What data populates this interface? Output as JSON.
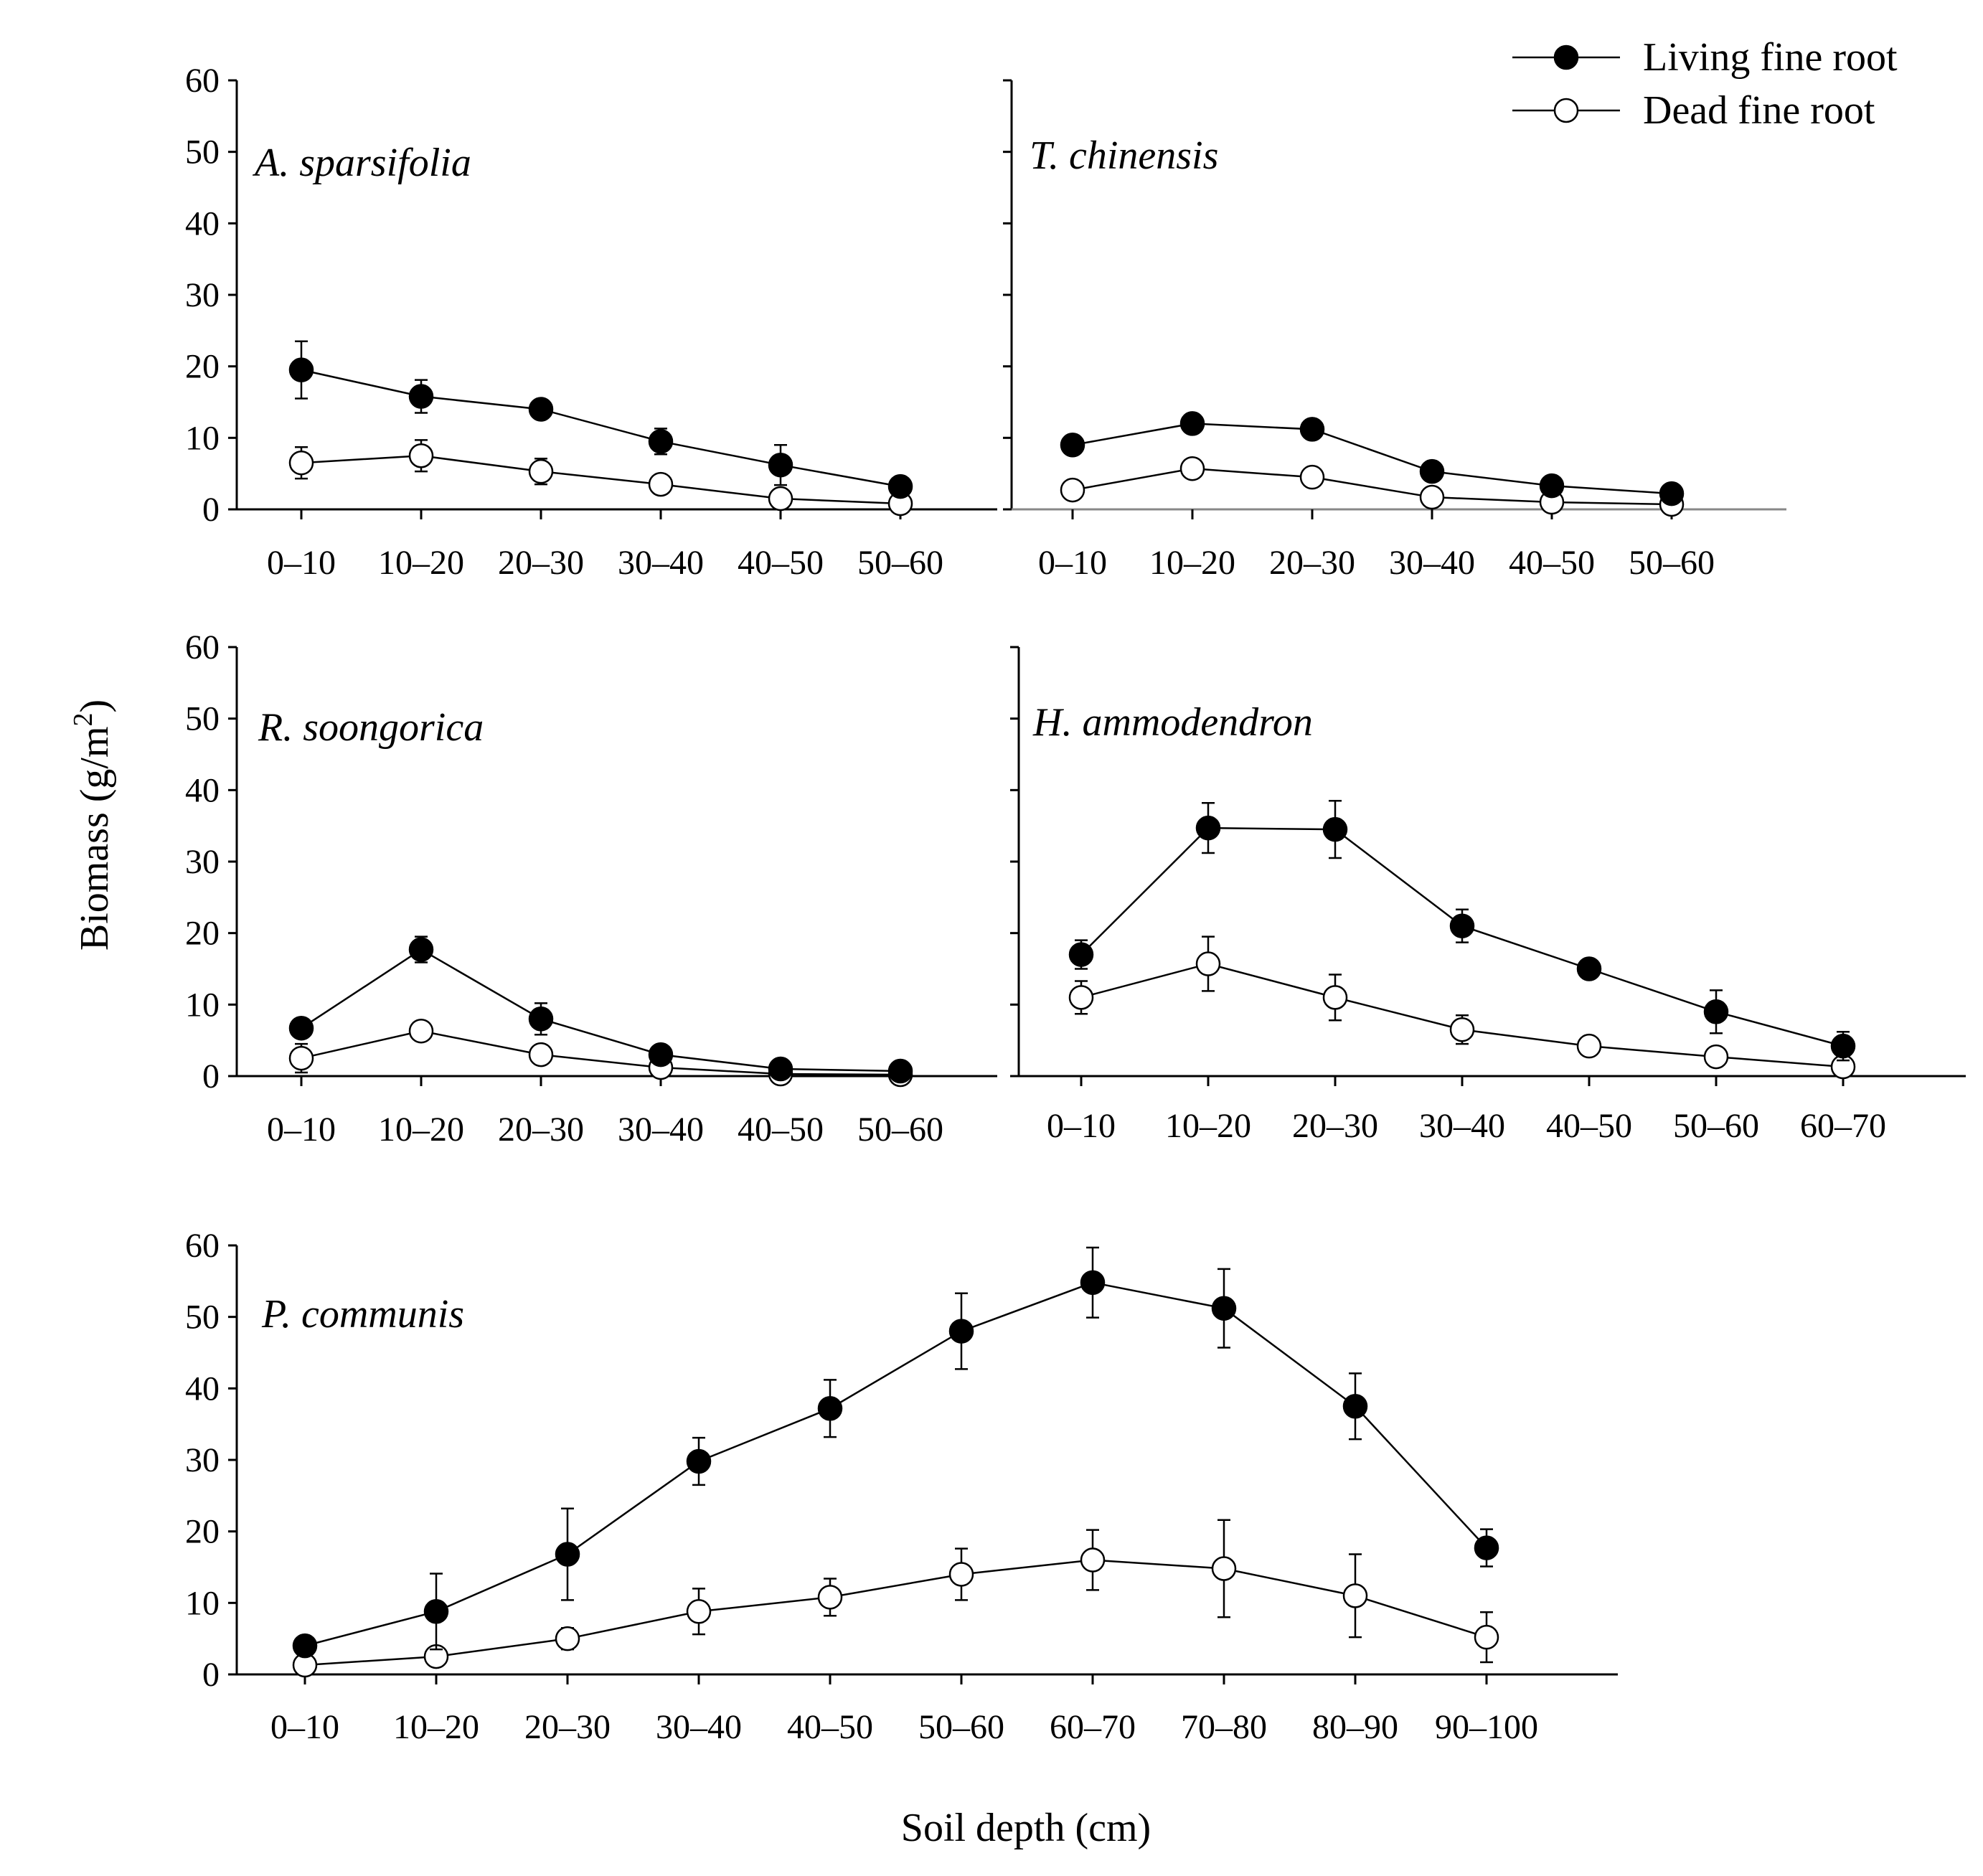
{
  "figure": {
    "ylabel": "Biomass (g/m",
    "ylabel_sup": "2",
    "ylabel_close": ")",
    "xlabel": "Soil depth (cm)"
  },
  "legend": {
    "entries": [
      {
        "label": "Living fine root",
        "marker": "filled-circle"
      },
      {
        "label": "Dead fine root",
        "marker": "open-circle"
      }
    ],
    "placement": "top-right"
  },
  "colors": {
    "line": "#000000",
    "filled": "#000000",
    "open": "#ffffff"
  },
  "chart_data": [
    {
      "type": "line",
      "title": "A. sparsifolia",
      "categories": [
        "0–10",
        "10–20",
        "20–30",
        "30–40",
        "40–50",
        "50–60"
      ],
      "yticks": [
        "0",
        "10",
        "20",
        "30",
        "40",
        "50",
        "60"
      ],
      "ylim": [
        0,
        60
      ],
      "series": [
        {
          "name": "Living fine root",
          "values": [
            19.5,
            15.8,
            14.0,
            9.5,
            6.2,
            3.2
          ],
          "errors": [
            4.0,
            2.3,
            0.8,
            1.8,
            2.8,
            0.6
          ]
        },
        {
          "name": "Dead fine root",
          "values": [
            6.5,
            7.5,
            5.3,
            3.5,
            1.5,
            0.8
          ],
          "errors": [
            2.2,
            2.2,
            1.8,
            0.7,
            0.5,
            0.3
          ]
        }
      ]
    },
    {
      "type": "line",
      "title": "T. chinensis",
      "categories": [
        "0–10",
        "10–20",
        "20–30",
        "30–40",
        "40–50",
        "50–60"
      ],
      "yticks": [],
      "ylim": [
        0,
        60
      ],
      "series": [
        {
          "name": "Living fine root",
          "values": [
            9.0,
            12.0,
            11.2,
            5.3,
            3.3,
            2.2
          ],
          "errors": [
            0.7,
            1.0,
            0.8,
            0.6,
            0.4,
            0.3
          ]
        },
        {
          "name": "Dead fine root",
          "values": [
            2.7,
            5.7,
            4.5,
            1.7,
            1.0,
            0.7
          ],
          "errors": [
            0.6,
            0.8,
            1.0,
            0.4,
            0.3,
            0.2
          ]
        }
      ]
    },
    {
      "type": "line",
      "title": "R. soongorica",
      "categories": [
        "0–10",
        "10–20",
        "20–30",
        "30–40",
        "40–50",
        "50–60"
      ],
      "yticks": [
        "0",
        "10",
        "20",
        "30",
        "40",
        "50",
        "60"
      ],
      "ylim": [
        0,
        60
      ],
      "series": [
        {
          "name": "Living fine root",
          "values": [
            6.7,
            17.7,
            8.0,
            3.0,
            1.0,
            0.7
          ],
          "errors": [
            0.8,
            1.8,
            2.2,
            0.6,
            0.3,
            0.2
          ]
        },
        {
          "name": "Dead fine root",
          "values": [
            2.5,
            6.3,
            3.0,
            1.2,
            0.3,
            0.2
          ],
          "errors": [
            2.0,
            1.0,
            1.3,
            0.5,
            0.2,
            0.1
          ]
        }
      ]
    },
    {
      "type": "line",
      "title": "H. ammodendron",
      "categories": [
        "0–10",
        "10–20",
        "20–30",
        "30–40",
        "40–50",
        "50–60",
        "60–70"
      ],
      "yticks": [],
      "ylim": [
        0,
        60
      ],
      "series": [
        {
          "name": "Living fine root",
          "values": [
            17.0,
            34.7,
            34.5,
            21.0,
            15.0,
            9.0,
            4.2
          ],
          "errors": [
            2.0,
            3.5,
            4.0,
            2.3,
            0.8,
            3.0,
            2.0
          ]
        },
        {
          "name": "Dead fine root",
          "values": [
            11.0,
            15.7,
            11.0,
            6.5,
            4.2,
            2.7,
            1.3
          ],
          "errors": [
            2.3,
            3.8,
            3.2,
            2.0,
            0.7,
            0.5,
            0.4
          ]
        }
      ]
    },
    {
      "type": "line",
      "title": "P. communis",
      "categories": [
        "0–10",
        "10–20",
        "20–30",
        "30–40",
        "40–50",
        "50–60",
        "60–70",
        "70–80",
        "80–90",
        "90–100"
      ],
      "yticks": [
        "0",
        "10",
        "20",
        "30",
        "40",
        "50",
        "60"
      ],
      "ylim": [
        0,
        60
      ],
      "series": [
        {
          "name": "Living fine root",
          "values": [
            4.0,
            8.8,
            16.8,
            29.8,
            37.2,
            48.0,
            54.8,
            51.2,
            37.5,
            17.7
          ],
          "errors": [
            0.5,
            5.3,
            6.4,
            3.3,
            4.0,
            5.3,
            4.9,
            5.5,
            4.6,
            2.6
          ]
        },
        {
          "name": "Dead fine root",
          "values": [
            1.3,
            2.5,
            5.0,
            8.8,
            10.8,
            14.0,
            16.0,
            14.8,
            11.0,
            5.2
          ],
          "errors": [
            0.5,
            0.6,
            1.5,
            3.2,
            2.6,
            3.6,
            4.2,
            6.8,
            5.8,
            3.5
          ]
        }
      ]
    }
  ]
}
